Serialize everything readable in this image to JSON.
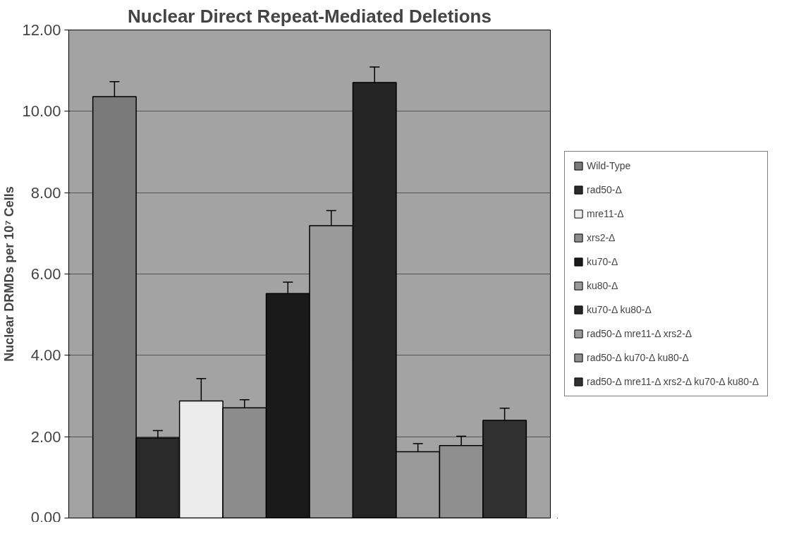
{
  "chart_data": {
    "type": "bar",
    "title": "Nuclear Direct Repeat-Mediated Deletions",
    "ylabel": "Nuclear DRMDs per 10⁷ Cells",
    "categories": [
      null
    ],
    "series": [
      {
        "name": "Wild-Type",
        "color": "#7a7a7a",
        "values": [
          10.36
        ],
        "errors": [
          0.37
        ]
      },
      {
        "name": "rad50-Δ",
        "color": "#2a2a2a",
        "values": [
          1.97
        ],
        "errors": [
          0.18
        ]
      },
      {
        "name": "mre11-Δ",
        "color": "#ececec",
        "values": [
          2.88
        ],
        "errors": [
          0.55
        ]
      },
      {
        "name": "xrs2-Δ",
        "color": "#8c8c8c",
        "values": [
          2.71
        ],
        "errors": [
          0.2
        ]
      },
      {
        "name": "ku70-Δ",
        "color": "#1a1a1a",
        "values": [
          5.52
        ],
        "errors": [
          0.28
        ]
      },
      {
        "name": "ku80-Δ",
        "color": "#9a9a9a",
        "values": [
          7.19
        ],
        "errors": [
          0.37
        ]
      },
      {
        "name": "ku70-Δ ku80-Δ",
        "color": "#252525",
        "values": [
          10.71
        ],
        "errors": [
          0.38
        ]
      },
      {
        "name": "rad50-Δ mre11-Δ xrs2-Δ",
        "color": "#999999",
        "values": [
          1.63
        ],
        "errors": [
          0.2
        ]
      },
      {
        "name": "rad50-Δ ku70-Δ ku80-Δ",
        "color": "#8f8f8f",
        "values": [
          1.78
        ],
        "errors": [
          0.23
        ]
      },
      {
        "name": "rad50-Δ mre11-Δ xrs2-Δ ku70-Δ ku80-Δ",
        "color": "#303030",
        "values": [
          2.4
        ],
        "errors": [
          0.3
        ]
      }
    ],
    "ylim": [
      0,
      12
    ],
    "yticks": [
      {
        "value": 0,
        "label": "0.00"
      },
      {
        "value": 2,
        "label": "2.00"
      },
      {
        "value": 4,
        "label": "4.00"
      },
      {
        "value": 6,
        "label": "6.00"
      },
      {
        "value": 8,
        "label": "8.00"
      },
      {
        "value": 10,
        "label": "10.00"
      },
      {
        "value": 12,
        "label": "12.00"
      }
    ],
    "grid": "y",
    "legend": "right"
  }
}
